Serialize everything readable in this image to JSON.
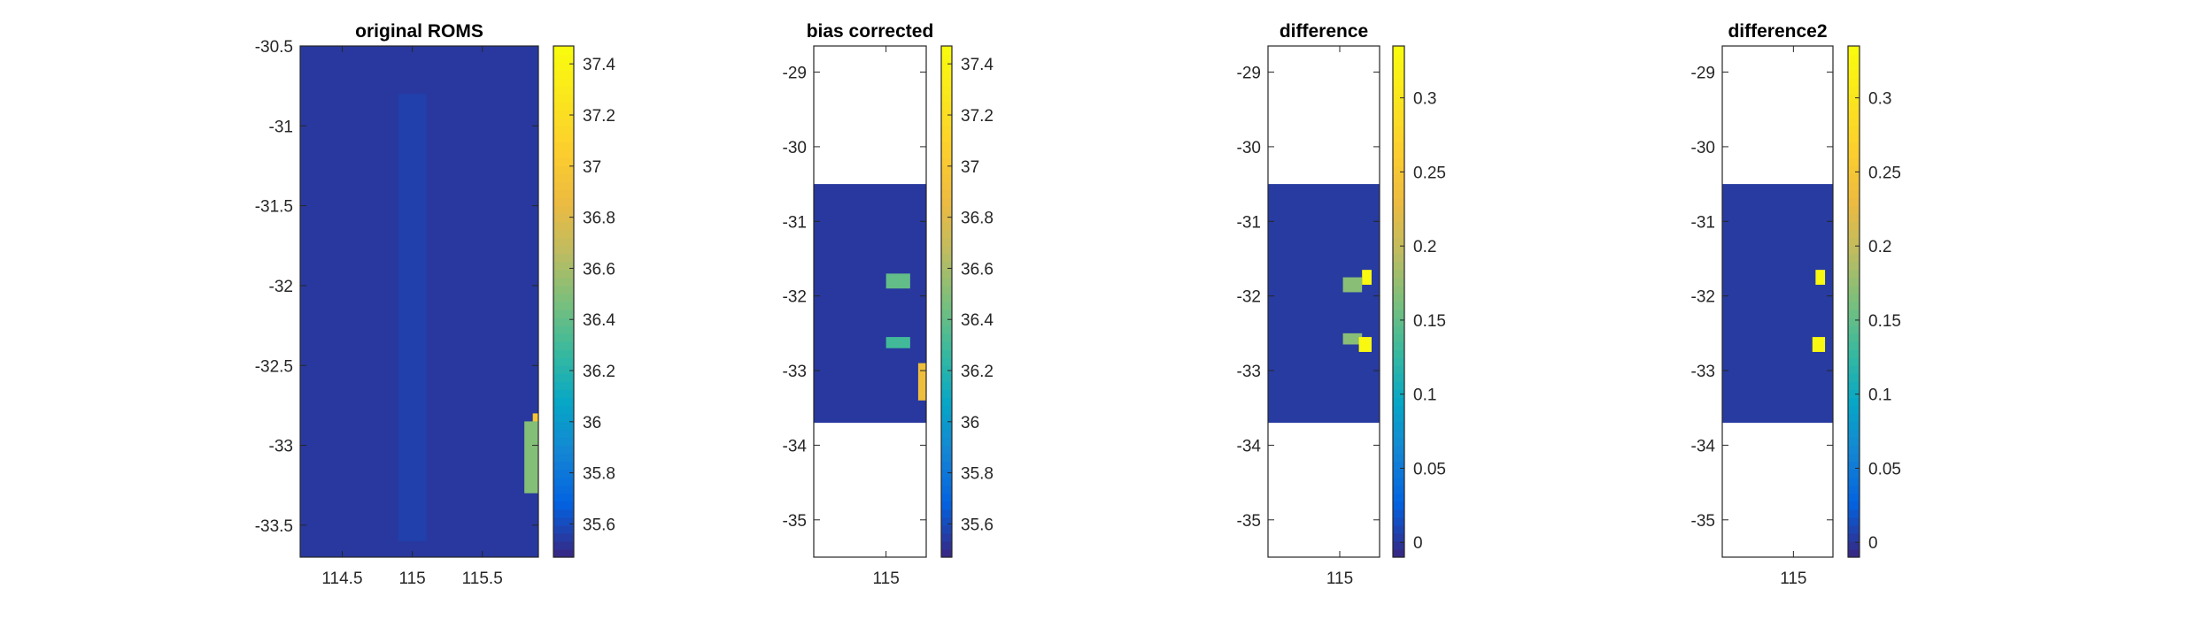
{
  "figure": {
    "background": "#ffffff"
  },
  "chart_data": [
    {
      "type": "heatmap",
      "title": "original ROMS",
      "xlabel": "",
      "ylabel": "",
      "xlim": [
        114.2,
        115.9
      ],
      "ylim": [
        -33.7,
        -30.5
      ],
      "xticks": [
        114.5,
        115,
        115.5
      ],
      "yticks": [
        -30.5,
        -31,
        -31.5,
        -32,
        -32.5,
        -33,
        -33.5
      ],
      "data_extent": {
        "x": [
          114.2,
          115.9
        ],
        "y": [
          -33.7,
          -30.5
        ]
      },
      "color_range": [
        35.47,
        37.47
      ],
      "colorbar_ticks": [
        35.6,
        35.8,
        36,
        36.2,
        36.4,
        36.6,
        36.8,
        37,
        37.2,
        37.4
      ],
      "background_value": 35.52,
      "features": [
        {
          "kind": "coastal_high",
          "x": [
            115.86,
            115.9
          ],
          "y": [
            -33.2,
            -32.8
          ],
          "value": 37.0
        },
        {
          "kind": "coastal_mid",
          "x": [
            115.8,
            115.9
          ],
          "y": [
            -33.3,
            -32.85
          ],
          "value": 36.5
        },
        {
          "kind": "offshore_ridge",
          "x": [
            114.9,
            115.1
          ],
          "y": [
            -33.6,
            -30.8
          ],
          "value": 35.6
        }
      ],
      "colormap": "parula"
    },
    {
      "type": "heatmap",
      "title": "bias corrected",
      "xlabel": "",
      "ylabel": "",
      "xlim": [
        114.55,
        115.25
      ],
      "ylim": [
        -35.5,
        -28.65
      ],
      "xticks": [
        115
      ],
      "yticks": [
        -29,
        -30,
        -31,
        -32,
        -33,
        -34,
        -35
      ],
      "data_extent": {
        "x": [
          114.55,
          115.25
        ],
        "y": [
          -33.7,
          -30.5
        ]
      },
      "color_range": [
        35.47,
        37.47
      ],
      "colorbar_ticks": [
        35.6,
        35.8,
        36,
        36.2,
        36.4,
        36.6,
        36.8,
        37,
        37.2,
        37.4
      ],
      "background_value": 35.52,
      "features": [
        {
          "kind": "patch",
          "x": [
            115.0,
            115.15
          ],
          "y": [
            -31.9,
            -31.7
          ],
          "value": 36.4
        },
        {
          "kind": "patch",
          "x": [
            115.0,
            115.15
          ],
          "y": [
            -32.7,
            -32.55
          ],
          "value": 36.3
        },
        {
          "kind": "coastal_high",
          "x": [
            115.2,
            115.25
          ],
          "y": [
            -33.4,
            -32.9
          ],
          "value": 36.9
        }
      ],
      "colormap": "parula"
    },
    {
      "type": "heatmap",
      "title": "difference",
      "xlabel": "",
      "ylabel": "",
      "xlim": [
        114.55,
        115.25
      ],
      "ylim": [
        -35.5,
        -28.65
      ],
      "xticks": [
        115
      ],
      "yticks": [
        -29,
        -30,
        -31,
        -32,
        -33,
        -34,
        -35
      ],
      "data_extent": {
        "x": [
          114.55,
          115.25
        ],
        "y": [
          -33.7,
          -30.5
        ]
      },
      "color_range": [
        -0.01,
        0.335
      ],
      "colorbar_ticks": [
        0,
        0.05,
        0.1,
        0.15,
        0.2,
        0.25,
        0.3
      ],
      "background_value": 0,
      "features": [
        {
          "kind": "patch",
          "x": [
            115.02,
            115.14
          ],
          "y": [
            -31.95,
            -31.75
          ],
          "value": 0.17
        },
        {
          "kind": "patch",
          "x": [
            115.14,
            115.2
          ],
          "y": [
            -31.85,
            -31.65
          ],
          "value": 0.33
        },
        {
          "kind": "patch",
          "x": [
            115.02,
            115.14
          ],
          "y": [
            -32.65,
            -32.5
          ],
          "value": 0.17
        },
        {
          "kind": "patch",
          "x": [
            115.12,
            115.2
          ],
          "y": [
            -32.75,
            -32.55
          ],
          "value": 0.33
        }
      ],
      "colormap": "parula"
    },
    {
      "type": "heatmap",
      "title": "difference2",
      "xlabel": "",
      "ylabel": "",
      "xlim": [
        114.55,
        115.25
      ],
      "ylim": [
        -35.5,
        -28.65
      ],
      "xticks": [
        115
      ],
      "yticks": [
        -29,
        -30,
        -31,
        -32,
        -33,
        -34,
        -35
      ],
      "data_extent": {
        "x": [
          114.55,
          115.25
        ],
        "y": [
          -33.7,
          -30.5
        ]
      },
      "color_range": [
        -0.01,
        0.335
      ],
      "colorbar_ticks": [
        0,
        0.05,
        0.1,
        0.15,
        0.2,
        0.25,
        0.3
      ],
      "background_value": 0,
      "features": [
        {
          "kind": "patch",
          "x": [
            115.14,
            115.2
          ],
          "y": [
            -31.85,
            -31.65
          ],
          "value": 0.33
        },
        {
          "kind": "patch",
          "x": [
            115.12,
            115.2
          ],
          "y": [
            -32.75,
            -32.55
          ],
          "value": 0.33
        }
      ],
      "colormap": "parula"
    }
  ]
}
